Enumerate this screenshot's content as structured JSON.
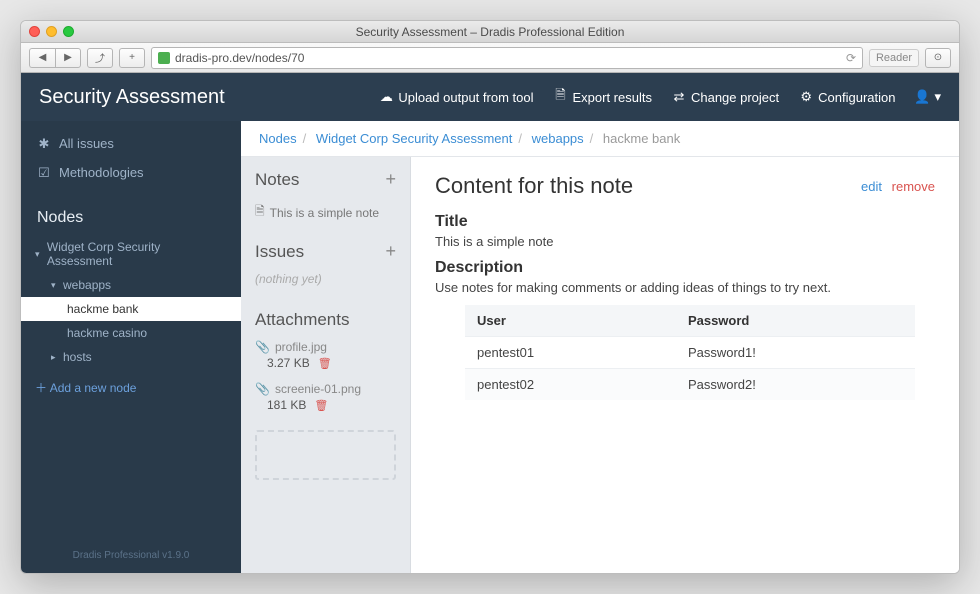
{
  "window": {
    "title": "Security Assessment – Dradis Professional Edition"
  },
  "browser": {
    "url": "dradis-pro.dev/nodes/70",
    "reader": "Reader"
  },
  "header": {
    "title": "Security Assessment",
    "nav": {
      "upload": "Upload output from tool",
      "export": "Export results",
      "change": "Change project",
      "config": "Configuration"
    }
  },
  "sidebar": {
    "all_issues": "All issues",
    "methodologies": "Methodologies",
    "nodes_heading": "Nodes",
    "tree": {
      "root": "Widget Corp Security Assessment",
      "webapps": "webapps",
      "hackme_bank": "hackme bank",
      "hackme_casino": "hackme casino",
      "hosts": "hosts"
    },
    "add_node": "Add a new node",
    "version": "Dradis Professional v1.9.0"
  },
  "breadcrumb": {
    "nodes": "Nodes",
    "root": "Widget Corp Security Assessment",
    "webapps": "webapps",
    "current": "hackme bank"
  },
  "mid": {
    "notes_head": "Notes",
    "note1": "This is a simple note",
    "issues_head": "Issues",
    "issues_empty": "(nothing yet)",
    "attach_head": "Attachments",
    "attachments": [
      {
        "name": "profile.jpg",
        "size": "3.27 KB"
      },
      {
        "name": "screenie-01.png",
        "size": "181 KB"
      }
    ]
  },
  "detail": {
    "heading": "Content for this note",
    "edit": "edit",
    "remove": "remove",
    "title_label": "Title",
    "title_value": "This is a simple note",
    "desc_label": "Description",
    "desc_value": "Use notes for making comments or adding ideas of things to try next.",
    "table": {
      "col_user": "User",
      "col_pass": "Password",
      "rows": [
        {
          "user": "pentest01",
          "pass": "Password1!"
        },
        {
          "user": "pentest02",
          "pass": "Password2!"
        }
      ]
    }
  },
  "colors": {
    "header_bg": "#2c3e50",
    "sidebar_bg": "#293a4a",
    "midcol_bg": "#e6e9ed",
    "link": "#3b8dd4",
    "danger": "#d9534f"
  }
}
